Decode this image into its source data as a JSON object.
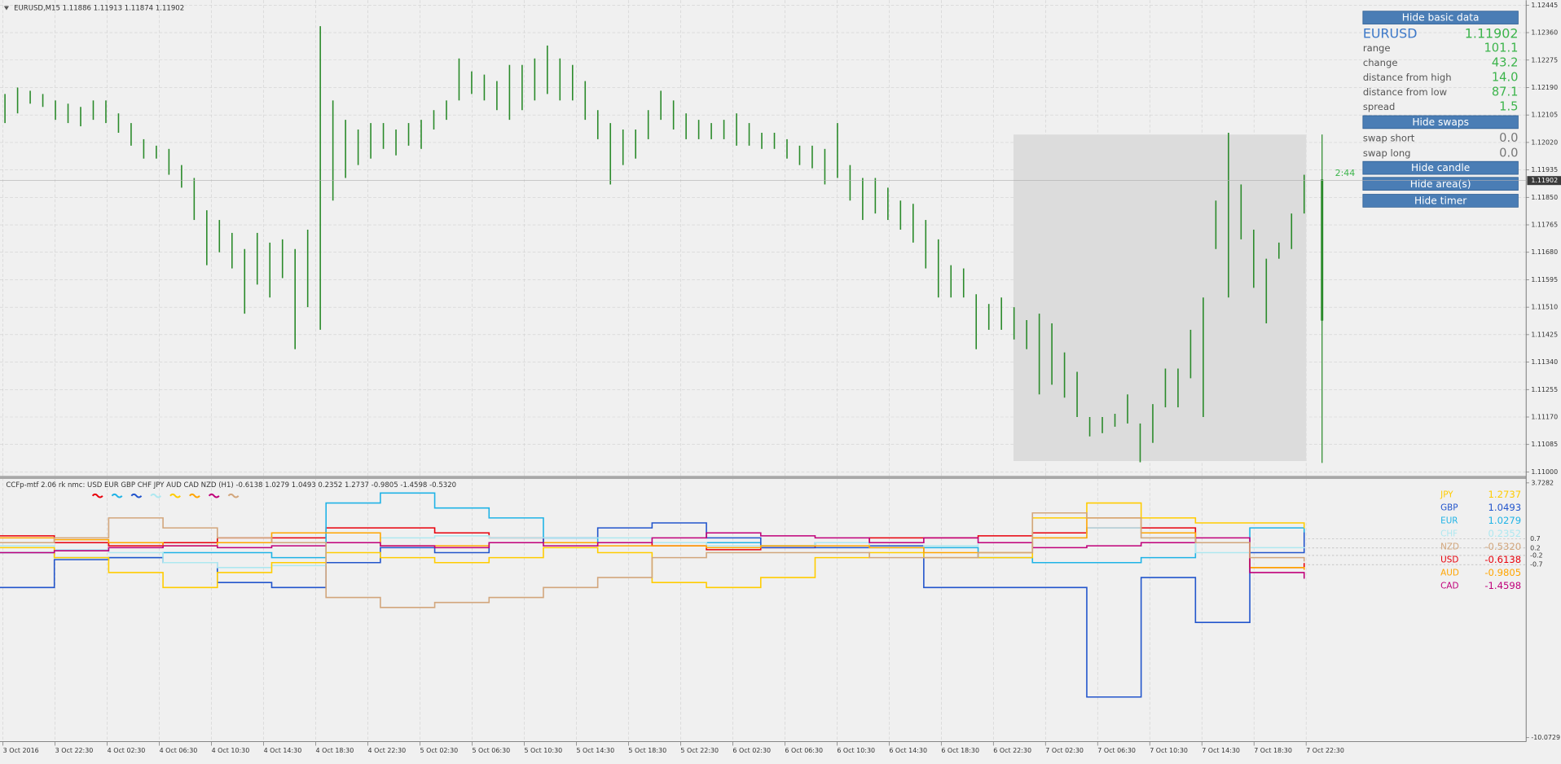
{
  "price_chart": {
    "header": "EURUSD,M15  1.11886 1.11913 1.11874 1.11902",
    "ylim": [
      1.11,
      1.12445
    ],
    "yticks": [
      1.12445,
      {
        "value": 1.1236,
        "label": "1.12360"
      },
      1.12275,
      {
        "value": 1.1219,
        "label": "1.12190"
      },
      1.12105,
      {
        "value": 1.1202,
        "label": "1.12020"
      },
      1.11935,
      {
        "value": 1.1185,
        "label": "1.11850"
      },
      1.11765,
      {
        "value": 1.1168,
        "label": "1.11680"
      },
      1.11595,
      {
        "value": 1.1151,
        "label": "1.11510"
      },
      1.11425,
      {
        "value": 1.1134,
        "label": "1.11340"
      },
      1.11255,
      {
        "value": 1.1117,
        "label": "1.11170"
      },
      1.11085,
      {
        "value": 1.11,
        "label": "1.11000"
      }
    ],
    "current_price": 1.11902,
    "timer": "2:44",
    "color": "#2a8a2a",
    "time_labels": [
      "3 Oct 2016",
      "3 Oct 22:30",
      "4 Oct 02:30",
      "4 Oct 06:30",
      "4 Oct 10:30",
      "4 Oct 14:30",
      "4 Oct 18:30",
      "4 Oct 22:30",
      "5 Oct 02:30",
      "5 Oct 06:30",
      "5 Oct 10:30",
      "5 Oct 14:30",
      "5 Oct 18:30",
      "5 Oct 22:30",
      "6 Oct 02:30",
      "6 Oct 06:30",
      "6 Oct 10:30",
      "6 Oct 14:30",
      "6 Oct 18:30",
      "6 Oct 22:30",
      "7 Oct 02:30",
      "7 Oct 06:30",
      "7 Oct 10:30",
      "7 Oct 14:30",
      "7 Oct 18:30",
      "7 Oct 22:30"
    ],
    "highs": [
      1.1217,
      1.1219,
      1.1218,
      1.1217,
      1.1215,
      1.1214,
      1.1213,
      1.1215,
      1.1215,
      1.1211,
      1.1208,
      1.1203,
      1.1201,
      1.12,
      1.1195,
      1.1191,
      1.1181,
      1.1178,
      1.1174,
      1.1169,
      1.1174,
      1.1171,
      1.1172,
      1.1169,
      1.1175,
      1.1238,
      1.1215,
      1.1209,
      1.1206,
      1.1208,
      1.1208,
      1.1206,
      1.1208,
      1.1209,
      1.1212,
      1.1215,
      1.1228,
      1.1224,
      1.1223,
      1.1221,
      1.1226,
      1.1226,
      1.1228,
      1.1232,
      1.1228,
      1.1226,
      1.1221,
      1.1212,
      1.1208,
      1.1206,
      1.1206,
      1.1212,
      1.1218,
      1.1215,
      1.1211,
      1.1209,
      1.1208,
      1.1209,
      1.1211,
      1.1208,
      1.1205,
      1.1205,
      1.1203,
      1.1201,
      1.1201,
      1.12,
      1.1208,
      1.1195,
      1.1191,
      1.1191,
      1.1188,
      1.1184,
      1.1183,
      1.1178,
      1.1172,
      1.1164,
      1.1163,
      1.1155,
      1.1152,
      1.1154,
      1.1151,
      1.1147,
      1.1149,
      1.1146,
      1.1137,
      1.1131,
      1.1117,
      1.1117,
      1.1118,
      1.1124,
      1.1115,
      1.1121,
      1.1132,
      1.1132,
      1.1144,
      1.1154,
      1.1184,
      1.1205,
      1.1189,
      1.1175,
      1.1166,
      1.1171,
      1.118,
      1.1192
    ],
    "lows": [
      1.1208,
      1.1211,
      1.1214,
      1.1213,
      1.1209,
      1.1208,
      1.1207,
      1.1209,
      1.1208,
      1.1205,
      1.1201,
      1.1197,
      1.1197,
      1.1192,
      1.1188,
      1.1178,
      1.1164,
      1.1168,
      1.1163,
      1.1149,
      1.1158,
      1.1154,
      1.116,
      1.1138,
      1.1151,
      1.1144,
      1.1184,
      1.1191,
      1.1195,
      1.1197,
      1.12,
      1.1198,
      1.1201,
      1.12,
      1.1206,
      1.1209,
      1.1215,
      1.1217,
      1.1215,
      1.1212,
      1.1209,
      1.1212,
      1.1215,
      1.1217,
      1.1215,
      1.1215,
      1.1209,
      1.1203,
      1.1189,
      1.1195,
      1.1197,
      1.1203,
      1.1209,
      1.1206,
      1.1203,
      1.1203,
      1.1203,
      1.1203,
      1.1201,
      1.1201,
      1.12,
      1.12,
      1.1197,
      1.1195,
      1.1194,
      1.1189,
      1.1191,
      1.1184,
      1.1178,
      1.118,
      1.1178,
      1.1175,
      1.1171,
      1.1163,
      1.1154,
      1.1154,
      1.1154,
      1.1138,
      1.1144,
      1.1144,
      1.1141,
      1.1138,
      1.1124,
      1.1127,
      1.1123,
      1.1117,
      1.1111,
      1.1112,
      1.1114,
      1.1115,
      1.1103,
      1.1109,
      1.112,
      1.112,
      1.1129,
      1.1117,
      1.1169,
      1.1154,
      1.1172,
      1.1157,
      1.1146,
      1.1166,
      1.1169,
      1.118
    ]
  },
  "panel": {
    "buttons": [
      "Hide basic data",
      "Hide swaps",
      "Hide candle",
      "Hide area(s)",
      "Hide timer"
    ],
    "symbol": "EURUSD",
    "price": "1.11902",
    "rows": [
      [
        "range",
        "101.1"
      ],
      [
        "change",
        "43.2"
      ],
      [
        "distance from high",
        "14.0"
      ],
      [
        "distance from low",
        "87.1"
      ],
      [
        "spread",
        "1.5"
      ]
    ],
    "swaps": [
      [
        "swap short",
        "0.0"
      ],
      [
        "swap long",
        "0.0"
      ]
    ]
  },
  "indicator": {
    "header": "CCFp-mtf 2.06 rk nmc:  USD EUR GBP CHF JPY AUD CAD NZD (H1) -0.6138 1.0279 1.0493 0.2352 1.2737 -0.9805 -1.4598 -0.5320",
    "ylim": [
      -10.0729,
      3.7282
    ],
    "yticks": [
      3.7282,
      -10.0729
    ],
    "levels": [
      0.7,
      0.2,
      -0.2,
      -0.7
    ],
    "legend_order": [
      "JPY",
      "GBP",
      "EUR",
      "CHF",
      "NZD",
      "USD",
      "AUD",
      "CAD"
    ],
    "series": [
      {
        "name": "USD",
        "color": "#e8000b",
        "label_value": "-0.6138",
        "values": [
          0.86,
          0.49,
          0.32,
          0.49,
          0.75,
          0.75,
          1.29,
          1.29,
          1.02,
          0.75,
          0.49,
          0.49,
          0.32,
          0.11,
          0.22,
          0.49,
          0.75,
          0.75,
          0.86,
          1.02,
          1.29,
          1.29,
          0.49,
          -0.86,
          -0.61
        ]
      },
      {
        "name": "EUR",
        "color": "#1fb3e6",
        "label_value": "1.0279",
        "values": [
          -0.05,
          -0.32,
          -0.32,
          -0.05,
          -0.05,
          -0.32,
          2.64,
          3.18,
          2.37,
          1.83,
          0.75,
          0.49,
          0.49,
          0.49,
          0.32,
          0.49,
          0.22,
          0.22,
          -0.32,
          -0.59,
          -0.59,
          -0.32,
          0.49,
          1.29,
          1.03
        ]
      },
      {
        "name": "GBP",
        "color": "#2255cc",
        "label_value": "1.0493",
        "values": [
          -1.94,
          -0.43,
          -0.32,
          -0.59,
          -1.67,
          -1.94,
          -0.59,
          0.22,
          -0.05,
          0.49,
          0.75,
          1.29,
          1.56,
          0.75,
          0.22,
          0.22,
          0.32,
          -1.94,
          -1.94,
          -1.94,
          -7.87,
          -1.4,
          -3.83,
          -0.05,
          1.05
        ]
      },
      {
        "name": "CHF",
        "color": "#aee8f0",
        "label_value": "0.2352",
        "values": [
          0.32,
          0.11,
          -0.05,
          -0.59,
          -0.86,
          -0.75,
          0.49,
          0.75,
          0.86,
          0.75,
          0.75,
          0.75,
          0.49,
          0.32,
          0.32,
          0.49,
          0.22,
          0.32,
          0.49,
          0.75,
          1.29,
          0.75,
          -0.05,
          0.22,
          0.24
        ]
      },
      {
        "name": "JPY",
        "color": "#ffcc00",
        "label_value": "1.2737",
        "values": [
          0.22,
          -0.32,
          -1.13,
          -1.94,
          -1.13,
          -0.59,
          -0.05,
          -0.32,
          -0.59,
          -0.32,
          0.22,
          -0.05,
          -1.67,
          -1.94,
          -1.4,
          -0.32,
          -0.05,
          -0.32,
          -0.32,
          1.83,
          2.64,
          1.83,
          1.56,
          1.56,
          1.27
        ]
      },
      {
        "name": "AUD",
        "color": "#ffa500",
        "label_value": "-0.9805",
        "values": [
          0.75,
          0.65,
          0.49,
          0.32,
          0.49,
          1.02,
          1.02,
          0.32,
          0.32,
          0.49,
          0.49,
          0.32,
          0.32,
          0.22,
          0.32,
          0.32,
          0.22,
          -0.05,
          -0.05,
          0.75,
          1.83,
          1.02,
          0.49,
          -0.86,
          -0.98
        ]
      },
      {
        "name": "CAD",
        "color": "#c0007a",
        "label_value": "-1.4598",
        "values": [
          -0.05,
          0.05,
          0.22,
          0.32,
          0.22,
          0.32,
          0.49,
          0.32,
          0.22,
          0.49,
          0.32,
          0.49,
          0.75,
          1.02,
          0.86,
          0.75,
          0.49,
          0.75,
          0.49,
          0.22,
          0.32,
          0.49,
          0.75,
          -1.13,
          -1.46
        ]
      },
      {
        "name": "NZD",
        "color": "#d2a67c",
        "label_value": "-0.5320",
        "values": [
          0.49,
          0.75,
          1.83,
          1.29,
          0.75,
          0.49,
          -2.48,
          -3.02,
          -2.75,
          -2.48,
          -1.94,
          -1.4,
          -0.32,
          -0.05,
          -0.05,
          -0.05,
          -0.32,
          -0.32,
          -0.05,
          2.1,
          1.83,
          0.75,
          0.49,
          -0.32,
          -0.53
        ]
      }
    ]
  }
}
